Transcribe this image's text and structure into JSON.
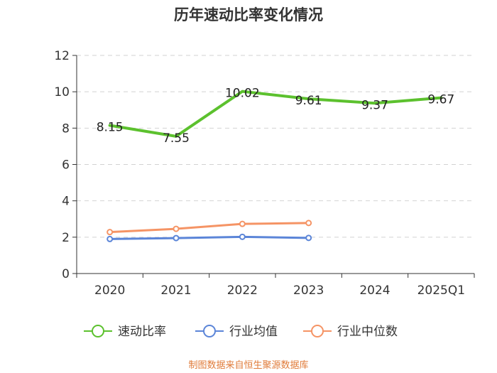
{
  "chart_data": {
    "type": "line",
    "title": "历年速动比率变化情况",
    "categories": [
      "2020",
      "2021",
      "2022",
      "2023",
      "2024",
      "2025Q1"
    ],
    "ylim": [
      0,
      12
    ],
    "yticks": [
      "0",
      "2",
      "4",
      "6",
      "8",
      "10",
      "12"
    ],
    "grid": true,
    "legend_position": "bottom",
    "series": [
      {
        "name": "速动比率",
        "color": "#5cc12e",
        "values": [
          8.15,
          7.55,
          10.02,
          9.61,
          9.37,
          9.67
        ],
        "labels": [
          "8.15",
          "7.55",
          "10.02",
          "9.61",
          "9.37",
          "9.67"
        ]
      },
      {
        "name": "行业均值",
        "color": "#5b85d8",
        "values": [
          1.9,
          1.95,
          2.02,
          1.96,
          null,
          null
        ]
      },
      {
        "name": "行业中位数",
        "color": "#f59465",
        "values": [
          2.28,
          2.46,
          2.73,
          2.78,
          null,
          null
        ]
      }
    ],
    "source": "制图数据来自恒生聚源数据库"
  }
}
